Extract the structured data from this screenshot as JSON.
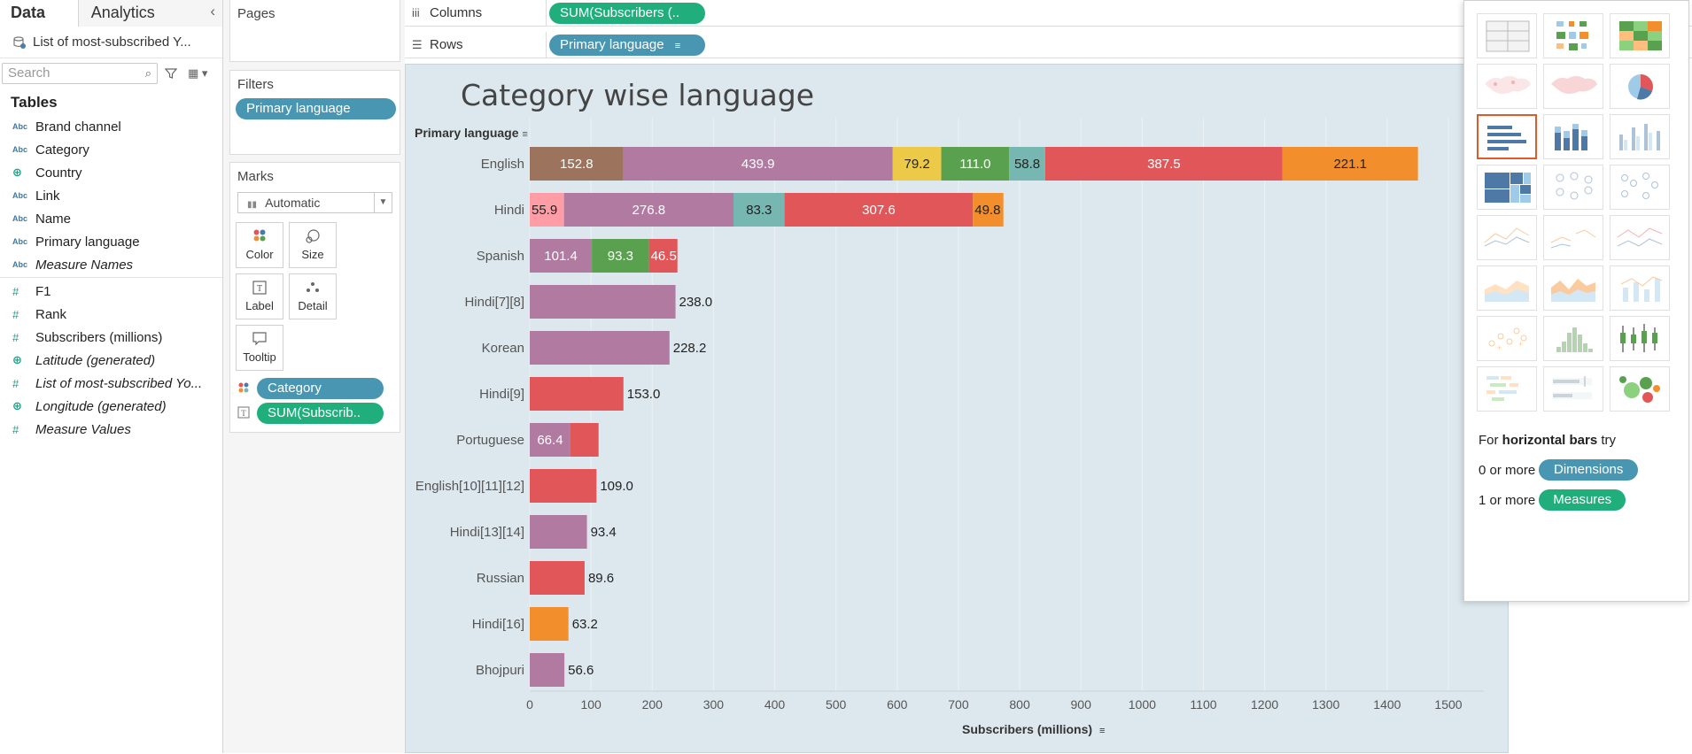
{
  "data_pane": {
    "tab_data": "Data",
    "tab_analytics": "Analytics",
    "datasource": "List of most-subscribed Y...",
    "search_placeholder": "Search",
    "tables_title": "Tables",
    "dimensions": [
      {
        "type": "Abc",
        "name": "Brand channel",
        "italic": false
      },
      {
        "type": "Abc",
        "name": "Category",
        "italic": false
      },
      {
        "type": "globe",
        "name": "Country",
        "italic": false
      },
      {
        "type": "Abc",
        "name": "Link",
        "italic": false
      },
      {
        "type": "Abc",
        "name": "Name",
        "italic": false
      },
      {
        "type": "Abc",
        "name": "Primary language",
        "italic": false
      },
      {
        "type": "Abc",
        "name": "Measure Names",
        "italic": true
      }
    ],
    "measures": [
      {
        "type": "hash",
        "name": "F1",
        "italic": false
      },
      {
        "type": "hash",
        "name": "Rank",
        "italic": false
      },
      {
        "type": "hash",
        "name": "Subscribers (millions)",
        "italic": false
      },
      {
        "type": "globe",
        "name": "Latitude (generated)",
        "italic": true
      },
      {
        "type": "hash",
        "name": "List of most-subscribed Yo...",
        "italic": true
      },
      {
        "type": "globe",
        "name": "Longitude (generated)",
        "italic": true
      },
      {
        "type": "hash",
        "name": "Measure Values",
        "italic": true
      }
    ]
  },
  "shelves": {
    "pages_title": "Pages",
    "filters_title": "Filters",
    "filter_pill": "Primary language",
    "marks_title": "Marks",
    "marks_type": "Automatic",
    "mark_buttons": [
      "Color",
      "Size",
      "Label",
      "Detail",
      "Tooltip"
    ],
    "color_pill": "Category",
    "label_pill": "SUM(Subscrib..",
    "columns_label": "Columns",
    "columns_pill": "SUM(Subscribers (..",
    "rows_label": "Rows",
    "rows_pill": "Primary language"
  },
  "view": {
    "title": "Category wise language",
    "row_header": "Primary language"
  },
  "chart_data": {
    "type": "bar",
    "orientation": "horizontal",
    "stacked": true,
    "title": "Category wise language",
    "xlabel": "Subscribers (millions)",
    "ylabel": "Primary language",
    "xlim": [
      0,
      1500
    ],
    "x_ticks": [
      0,
      100,
      200,
      300,
      400,
      500,
      600,
      700,
      800,
      900,
      1000,
      1100,
      1200,
      1300,
      1400,
      1500
    ],
    "grid": true,
    "categories": [
      "English",
      "Hindi",
      "Spanish",
      "Hindi[7][8]",
      "Korean",
      "Hindi[9]",
      "Portuguese",
      "English[10][11][12]",
      "Hindi[13][14]",
      "Russian",
      "Hindi[16]",
      "Bhojpuri"
    ],
    "colors": {
      "brown": "#9c735c",
      "purple": "#b07aa1",
      "yellow": "#edc948",
      "green": "#59a14f",
      "teal": "#76b7b2",
      "red": "#e15759",
      "orange": "#f28e2b",
      "pink": "#ff9da7"
    },
    "segments": [
      [
        {
          "value": 152.8,
          "color": "brown"
        },
        {
          "value": 439.9,
          "color": "purple"
        },
        {
          "value": 79.2,
          "color": "yellow"
        },
        {
          "value": 111.0,
          "color": "green"
        },
        {
          "value": 58.8,
          "color": "teal"
        },
        {
          "value": 387.5,
          "color": "red"
        },
        {
          "value": 221.1,
          "color": "orange"
        }
      ],
      [
        {
          "value": 55.9,
          "color": "pink"
        },
        {
          "value": 276.8,
          "color": "purple"
        },
        {
          "value": 83.3,
          "color": "teal"
        },
        {
          "value": 307.6,
          "color": "red"
        },
        {
          "value": 49.8,
          "color": "orange"
        }
      ],
      [
        {
          "value": 101.4,
          "color": "purple"
        },
        {
          "value": 93.3,
          "color": "green"
        },
        {
          "value": 46.5,
          "color": "red"
        }
      ],
      [
        {
          "value": 238.0,
          "color": "purple"
        }
      ],
      [
        {
          "value": 228.2,
          "color": "purple"
        }
      ],
      [
        {
          "value": 153.0,
          "color": "red"
        }
      ],
      [
        {
          "value": 66.4,
          "color": "purple"
        },
        {
          "value": 46.0,
          "color": "red"
        }
      ],
      [
        {
          "value": 109.0,
          "color": "red"
        }
      ],
      [
        {
          "value": 93.4,
          "color": "purple"
        }
      ],
      [
        {
          "value": 89.6,
          "color": "red"
        }
      ],
      [
        {
          "value": 63.2,
          "color": "orange"
        }
      ],
      [
        {
          "value": 56.6,
          "color": "purple"
        }
      ]
    ],
    "labels": [
      {
        "inside": [
          "152.8",
          "439.9",
          "79.2",
          "111.0",
          "58.8",
          "387.5",
          "221.1"
        ],
        "outside": ""
      },
      {
        "inside": [
          "55.9",
          "276.8",
          "83.3",
          "307.6",
          "49.8"
        ],
        "outside": ""
      },
      {
        "inside": [
          "101.4",
          "93.3",
          "46.5"
        ],
        "outside": ""
      },
      {
        "inside": [
          ""
        ],
        "outside": "238.0"
      },
      {
        "inside": [
          ""
        ],
        "outside": "228.2"
      },
      {
        "inside": [
          ""
        ],
        "outside": "153.0"
      },
      {
        "inside": [
          "66.4",
          ""
        ],
        "outside": ""
      },
      {
        "inside": [
          ""
        ],
        "outside": "109.0"
      },
      {
        "inside": [
          ""
        ],
        "outside": "93.4"
      },
      {
        "inside": [
          ""
        ],
        "outside": "89.6"
      },
      {
        "inside": [
          ""
        ],
        "outside": "63.2"
      },
      {
        "inside": [
          ""
        ],
        "outside": "56.6"
      }
    ]
  },
  "show_me": {
    "hint_prefix": "For ",
    "hint_type": "horizontal bars",
    "hint_suffix": " try",
    "dims_prefix": "0 or more",
    "dims_pill": "Dimensions",
    "meas_prefix": "1 or more",
    "meas_pill": "Measures",
    "selected_tile": "horizontal-bars"
  }
}
